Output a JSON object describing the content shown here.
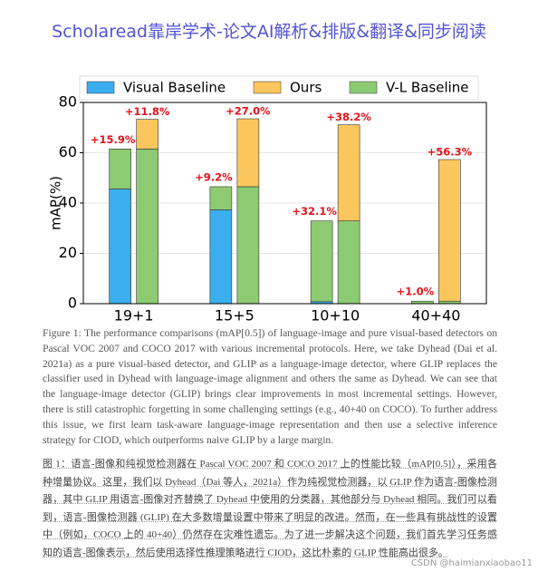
{
  "header": {
    "title": "Scholaread靠岸学术-论文AI解析&排版&翻译&同步阅读"
  },
  "chart_data": {
    "type": "bar",
    "ylabel": "mAP(%)",
    "categories": [
      "19+1",
      "15+5",
      "10+10",
      "40+40"
    ],
    "series": [
      {
        "name": "Visual Baseline",
        "color": "#3aaeee",
        "values": [
          45.6,
          37.3,
          0.8,
          0
        ]
      },
      {
        "name": "Ours",
        "color": "#fbc65d",
        "values": [
          11.8,
          27.0,
          38.2,
          56.3
        ],
        "value_labels": [
          "+11.8%",
          "+27.0%",
          "+38.2%",
          "+56.3%"
        ]
      },
      {
        "name": "V-L Baseline",
        "color": "#8dcb72",
        "values": [
          61.5,
          46.5,
          32.9,
          1.0
        ]
      }
    ],
    "gains": {
      "values": [
        15.9,
        9.2,
        32.1,
        1.0
      ],
      "value_labels": [
        "+15.9%",
        "+9.2%",
        "+32.1%",
        "+1.0%"
      ]
    },
    "label_color": "#e8101a",
    "ylim": [
      0,
      80
    ],
    "yticks": [
      0,
      20,
      40,
      60,
      80
    ],
    "grid": true,
    "legend": "top"
  },
  "caption": {
    "english": "Figure 1: The performance comparisons (mAP[0.5]) of language-image and pure visual-based detectors on Pascal VOC 2007 and COCO 2017 with various incremental protocols. Here, we take Dyhead (Dai et al. 2021a) as a pure visual-based detector, and GLIP as a language-image detector, where GLIP replaces the classifier used in Dyhead with language-image alignment and others the same as Dyhead. We can see that the language-image detector (GLIP) brings clear improvements in most incremental settings. However, there is still catastrophic forgetting in some challenging settings (e.g., 40+40 on COCO). To further address this issue, we first learn task-aware language-image representation and then use a selective inference strategy for CIOD, which outperforms naive GLIP by a large margin.",
    "chinese": "图 1：语言-图像和纯视觉检测器在 Pascal VOC 2007 和 COCO 2017 上的性能比较（mAP[0.5]），采用各种增量协议。这里，我们以 Dyhead（Dai 等人，2021a）作为纯视觉检测器，以 GLIP 作为语言-图像检测器，其中 GLIP 用语言-图像对齐替换了 Dyhead 中使用的分类器，其他部分与 Dyhead 相同。我们可以看到，语言-图像检测器 (GLIP) 在大多数增量设置中带来了明显的改进。然而，在一些具有挑战性的设置中（例如，COCO 上的 40+40）仍然存在灾难性遗忘。为了进一步解决这个问题，我们首先学习任务感知的语言-图像表示，然后使用选择性推理策略进行 CIOD，这比朴素的 GLIP 性能高出很多。"
  },
  "watermark": "CSDN @haimianxiaobao11"
}
